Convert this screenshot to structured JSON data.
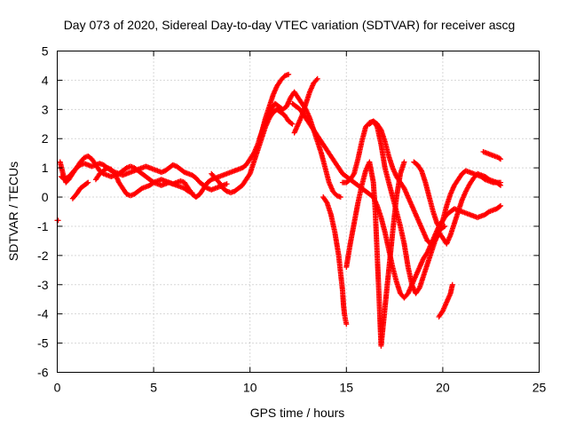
{
  "chart_data": {
    "type": "scatter",
    "title": "Day 073 of 2020, Sidereal Day-to-day VTEC variation (SDTVAR) for receiver ascg",
    "xlabel": "GPS time / hours",
    "ylabel": "SDTVAR / TECUs",
    "xlim": [
      0,
      25
    ],
    "ylim": [
      -6,
      5
    ],
    "xticks": [
      "0",
      "5",
      "10",
      "15",
      "20",
      "25"
    ],
    "yticks": [
      "-6",
      "-5",
      "-4",
      "-3",
      "-2",
      "-1",
      "0",
      "1",
      "2",
      "3",
      "4",
      "5"
    ],
    "grid": true,
    "marker": "+",
    "color": "#ff0000",
    "series": [
      {
        "x": [
          0.0,
          0.05
        ],
        "y": [
          -0.8,
          -0.8
        ]
      },
      {
        "x": [
          0.15,
          0.3,
          0.45,
          0.6,
          0.8,
          1.0,
          1.2,
          1.4,
          1.6,
          1.8,
          2.0,
          2.2,
          2.4,
          2.6,
          2.8,
          3.0,
          3.2,
          3.4,
          3.6,
          3.8,
          4.0,
          4.2,
          4.4,
          4.6,
          4.8,
          5.0,
          5.2,
          5.4,
          5.6,
          5.8,
          6.0,
          6.2,
          6.4,
          6.6,
          6.8,
          7.0
        ],
        "y": [
          1.2,
          0.8,
          0.5,
          0.6,
          0.8,
          1.0,
          1.2,
          1.35,
          1.4,
          1.3,
          1.1,
          0.9,
          0.8,
          0.75,
          0.7,
          0.75,
          0.8,
          0.9,
          1.0,
          1.05,
          1.0,
          0.9,
          0.8,
          0.7,
          0.6,
          0.5,
          0.45,
          0.4,
          0.45,
          0.5,
          0.45,
          0.4,
          0.35,
          0.3,
          0.2,
          0.15
        ]
      },
      {
        "x": [
          0.2,
          0.4,
          0.6,
          0.8,
          1.0,
          1.2,
          1.4,
          1.6,
          1.8,
          2.0,
          2.2,
          2.4,
          2.6,
          2.8,
          3.0,
          3.2,
          3.4,
          3.6,
          3.8,
          4.0,
          4.2,
          4.4,
          4.6,
          4.8,
          5.0,
          5.2,
          5.4,
          5.6,
          5.8,
          6.0,
          6.2,
          6.4,
          6.6,
          6.8,
          7.0,
          7.2,
          7.4,
          7.6,
          7.8,
          8.0,
          8.2,
          8.4,
          8.6,
          8.8
        ],
        "y": [
          0.7,
          0.6,
          0.7,
          0.85,
          1.0,
          1.1,
          1.15,
          1.1,
          1.05,
          1.1,
          1.15,
          1.1,
          1.0,
          0.9,
          0.85,
          0.8,
          0.75,
          0.8,
          0.85,
          0.9,
          0.95,
          1.0,
          1.05,
          1.0,
          0.95,
          0.9,
          0.85,
          0.9,
          1.0,
          1.1,
          1.05,
          0.95,
          0.85,
          0.8,
          0.75,
          0.65,
          0.5,
          0.4,
          0.3,
          0.25,
          0.3,
          0.35,
          0.4,
          0.45
        ]
      },
      {
        "x": [
          0.8,
          1.0,
          1.2,
          1.4,
          1.6
        ],
        "y": [
          -0.05,
          0.1,
          0.3,
          0.4,
          0.5
        ]
      },
      {
        "x": [
          2.0,
          2.2,
          2.4,
          2.6,
          2.8,
          3.0,
          3.2,
          3.4,
          3.6,
          3.8,
          4.0,
          4.2,
          4.4,
          4.6,
          4.8,
          5.0,
          5.2,
          5.4,
          5.6,
          5.8,
          6.0,
          6.2,
          6.4,
          6.6,
          6.8,
          7.0,
          7.2,
          7.4,
          7.6,
          7.8,
          8.0,
          8.2,
          8.4,
          8.6,
          8.8,
          9.0,
          9.2,
          9.4,
          9.6,
          9.8,
          10.0,
          10.2,
          10.4,
          10.6,
          10.8,
          11.0,
          11.2,
          11.4,
          11.6,
          11.8,
          12.0
        ],
        "y": [
          0.6,
          0.8,
          0.9,
          1.0,
          0.95,
          0.8,
          0.5,
          0.3,
          0.1,
          0.05,
          0.1,
          0.2,
          0.3,
          0.35,
          0.4,
          0.5,
          0.55,
          0.6,
          0.55,
          0.5,
          0.45,
          0.5,
          0.55,
          0.5,
          0.3,
          0.1,
          0.0,
          0.1,
          0.3,
          0.5,
          0.6,
          0.65,
          0.7,
          0.75,
          0.8,
          0.85,
          0.9,
          0.95,
          1.0,
          1.1,
          1.3,
          1.5,
          1.8,
          2.2,
          2.7,
          3.1,
          3.5,
          3.8,
          4.0,
          4.15,
          4.2
        ]
      },
      {
        "x": [
          8.0,
          8.2,
          8.4,
          8.6,
          8.8,
          9.0,
          9.2,
          9.4,
          9.6,
          9.8,
          10.0,
          10.2,
          10.4,
          10.6,
          10.8,
          11.0,
          11.2,
          11.4,
          11.6,
          11.8,
          12.0,
          12.2
        ],
        "y": [
          0.8,
          0.65,
          0.5,
          0.3,
          0.2,
          0.15,
          0.2,
          0.3,
          0.4,
          0.6,
          0.8,
          1.2,
          1.6,
          2.0,
          2.4,
          2.7,
          2.9,
          3.0,
          2.9,
          2.8,
          2.6,
          2.5
        ]
      },
      {
        "x": [
          10.5,
          10.7,
          10.9,
          11.1,
          11.3,
          11.5,
          11.7,
          11.9,
          12.1,
          12.3,
          12.5,
          12.7,
          12.9,
          13.1,
          13.3,
          13.5,
          13.7,
          13.9,
          14.1,
          14.3,
          14.5,
          14.7
        ],
        "y": [
          2.0,
          2.4,
          2.7,
          3.0,
          3.2,
          3.1,
          3.0,
          3.1,
          3.4,
          3.6,
          3.4,
          3.2,
          3.0,
          2.7,
          2.3,
          1.9,
          1.5,
          1.0,
          0.5,
          0.2,
          0.05,
          0.0
        ]
      },
      {
        "x": [
          12.3,
          12.5,
          12.7,
          12.9,
          13.1,
          13.3,
          13.5
        ],
        "y": [
          2.2,
          2.5,
          2.8,
          3.2,
          3.6,
          3.9,
          4.05
        ]
      },
      {
        "x": [
          12.2,
          12.4,
          12.6,
          12.8,
          13.0,
          13.2,
          13.4,
          13.6,
          13.8,
          14.0,
          14.2,
          14.4,
          14.6,
          14.8,
          15.0,
          15.2,
          15.4,
          15.6,
          15.8,
          16.0,
          16.2,
          16.4,
          16.6,
          16.8,
          17.0,
          17.2,
          17.4,
          17.6,
          17.8,
          18.0,
          18.2,
          18.4,
          18.6,
          18.8,
          19.0,
          19.2,
          19.4,
          19.6,
          19.8,
          20.0,
          20.2,
          20.4,
          20.6,
          20.8,
          21.0,
          21.2,
          21.4,
          21.6,
          21.8,
          22.0,
          22.2,
          22.4,
          22.6,
          22.8,
          23.0
        ],
        "y": [
          3.2,
          3.1,
          3.0,
          2.8,
          2.6,
          2.4,
          2.2,
          2.0,
          1.8,
          1.6,
          1.4,
          1.2,
          1.0,
          0.8,
          0.7,
          0.6,
          0.5,
          0.4,
          0.3,
          0.2,
          0.1,
          0.0,
          -0.3,
          -0.7,
          -1.2,
          -1.8,
          -2.4,
          -2.9,
          -3.3,
          -3.45,
          -3.3,
          -3.0,
          -2.7,
          -2.4,
          -2.1,
          -1.9,
          -1.6,
          -1.3,
          -1.0,
          -0.8,
          -0.6,
          -0.5,
          -0.4,
          -0.45,
          -0.5,
          -0.55,
          -0.6,
          -0.65,
          -0.7,
          -0.65,
          -0.6,
          -0.5,
          -0.45,
          -0.4,
          -0.3
        ]
      },
      {
        "x": [
          13.8,
          14.0,
          14.2,
          14.4,
          14.6,
          14.7,
          14.8,
          14.85,
          14.9,
          14.95,
          15.0
        ],
        "y": [
          0.0,
          -0.2,
          -0.6,
          -1.2,
          -2.0,
          -2.6,
          -3.2,
          -3.7,
          -4.0,
          -4.2,
          -4.35
        ]
      },
      {
        "x": [
          14.8,
          15.0,
          15.2,
          15.4,
          15.6,
          15.8,
          16.0,
          16.2,
          16.4,
          16.6,
          16.8,
          17.0,
          17.2,
          17.4,
          17.6,
          17.8,
          18.0,
          18.2,
          18.4,
          18.6,
          18.8,
          19.0,
          19.2,
          19.4,
          19.6,
          19.8,
          20.0,
          20.2,
          20.4,
          20.6,
          20.8,
          21.0,
          21.2,
          21.4,
          21.6,
          21.8,
          22.0,
          22.2,
          22.4,
          22.6,
          22.8,
          23.0
        ],
        "y": [
          0.5,
          0.5,
          0.6,
          0.8,
          1.3,
          1.9,
          2.4,
          2.55,
          2.6,
          2.5,
          2.3,
          1.9,
          1.4,
          1.0,
          0.7,
          0.5,
          0.3,
          0.0,
          -0.3,
          -0.6,
          -0.9,
          -1.2,
          -1.5,
          -1.6,
          -1.5,
          -1.2,
          -0.8,
          -0.3,
          0.1,
          0.4,
          0.6,
          0.8,
          0.9,
          0.85,
          0.8,
          0.75,
          0.7,
          0.6,
          0.55,
          0.5,
          0.5,
          0.5
        ]
      },
      {
        "x": [
          15.0,
          15.2,
          15.4,
          15.6,
          15.8,
          16.0,
          16.2,
          16.4,
          16.5,
          16.6,
          16.7,
          16.8,
          17.0,
          17.2,
          17.4,
          17.6,
          17.8,
          18.0
        ],
        "y": [
          -2.4,
          -1.6,
          -0.9,
          -0.2,
          0.4,
          0.9,
          1.2,
          0.5,
          -0.5,
          -2.0,
          -3.5,
          -5.1,
          -3.8,
          -2.5,
          -1.2,
          0.0,
          0.8,
          1.2
        ]
      },
      {
        "x": [
          16.2,
          16.4,
          16.6,
          16.8,
          17.0,
          17.2,
          17.4,
          17.6,
          17.8,
          18.0,
          18.2,
          18.4,
          18.6,
          18.8,
          19.0,
          19.2,
          19.4,
          19.6,
          19.8,
          20.0,
          20.2,
          20.4,
          20.6,
          20.8,
          21.0,
          21.2,
          21.4,
          21.6,
          21.8,
          22.0,
          22.2,
          22.4,
          22.6,
          22.8,
          23.0
        ],
        "y": [
          2.5,
          2.6,
          2.4,
          1.8,
          1.0,
          0.5,
          0.0,
          -0.5,
          -1.0,
          -1.6,
          -2.4,
          -3.0,
          -3.3,
          -3.1,
          -2.7,
          -2.3,
          -1.9,
          -1.5,
          -1.2,
          -1.4,
          -1.6,
          -1.3,
          -0.9,
          -0.5,
          -0.1,
          0.2,
          0.45,
          0.65,
          0.8,
          0.75,
          0.7,
          0.6,
          0.55,
          0.5,
          0.4
        ]
      },
      {
        "x": [
          18.5,
          18.7,
          18.9,
          19.1,
          19.3,
          19.5,
          19.7,
          19.9,
          20.1
        ],
        "y": [
          1.2,
          1.1,
          0.9,
          0.5,
          0.0,
          -0.5,
          -0.9,
          -1.1,
          -1.0
        ]
      },
      {
        "x": [
          19.8,
          20.0,
          20.2,
          20.4,
          20.5
        ],
        "y": [
          -4.1,
          -3.9,
          -3.6,
          -3.3,
          -3.0
        ]
      },
      {
        "x": [
          22.1,
          22.3,
          22.5,
          22.7,
          22.9,
          23.0
        ],
        "y": [
          1.55,
          1.5,
          1.45,
          1.4,
          1.35,
          1.3
        ]
      }
    ]
  }
}
